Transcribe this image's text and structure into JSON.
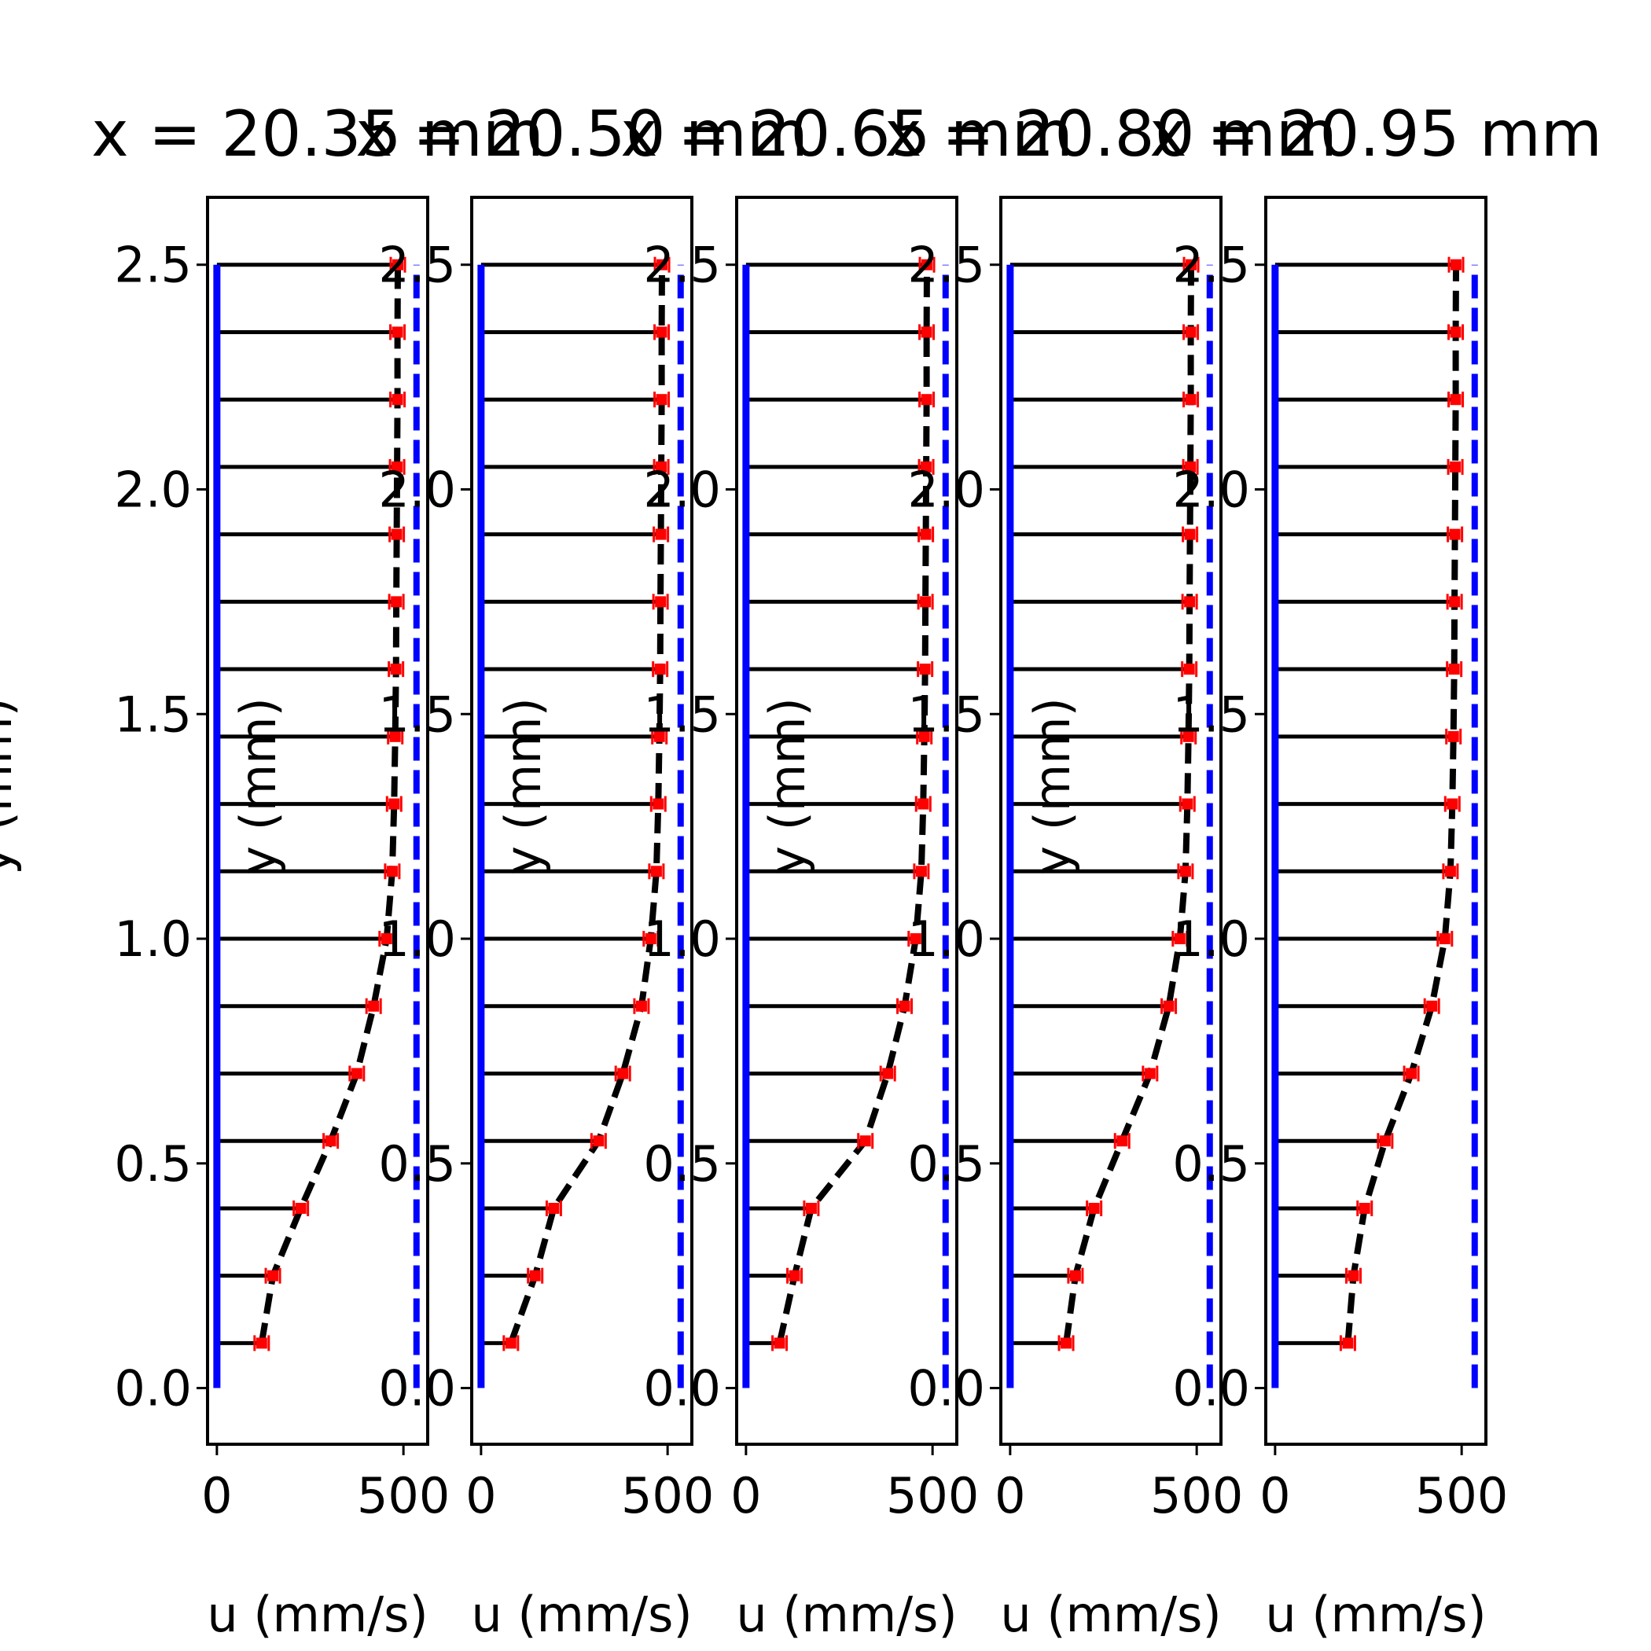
{
  "chart_data": [
    {
      "type": "line",
      "title": "x = 20.35 mm",
      "xlabel": "u (mm/s)",
      "ylabel": "y (mm)",
      "xticks": [
        "0",
        "500"
      ],
      "yticks": [
        "0.0",
        "0.5",
        "1.0",
        "1.5",
        "2.0",
        "2.5"
      ],
      "xlim": [
        -25,
        565
      ],
      "ylim": [
        -0.125,
        2.65
      ],
      "wall_u": 0,
      "freestream_u": 535,
      "y": [
        0.1,
        0.25,
        0.4,
        0.55,
        0.7,
        0.85,
        1.0,
        1.15,
        1.3,
        1.45,
        1.6,
        1.75,
        1.9,
        2.05,
        2.2,
        2.35,
        2.5
      ],
      "u": [
        120,
        150,
        225,
        305,
        375,
        420,
        455,
        470,
        475,
        478,
        480,
        481,
        482,
        483,
        484,
        484,
        485
      ]
    },
    {
      "type": "line",
      "title": "x = 20.50 mm",
      "xlabel": "u (mm/s)",
      "ylabel": "y (mm)",
      "xticks": [
        "0",
        "500"
      ],
      "yticks": [
        "0.0",
        "0.5",
        "1.0",
        "1.5",
        "2.0",
        "2.5"
      ],
      "xlim": [
        -25,
        565
      ],
      "ylim": [
        -0.125,
        2.65
      ],
      "wall_u": 0,
      "freestream_u": 535,
      "y": [
        0.1,
        0.25,
        0.4,
        0.55,
        0.7,
        0.85,
        1.0,
        1.15,
        1.3,
        1.45,
        1.6,
        1.75,
        1.9,
        2.05,
        2.2,
        2.35,
        2.5
      ],
      "u": [
        80,
        145,
        195,
        315,
        380,
        430,
        455,
        470,
        475,
        478,
        480,
        481,
        482,
        483,
        484,
        484,
        485
      ]
    },
    {
      "type": "line",
      "title": "x = 20.65 mm",
      "xlabel": "u (mm/s)",
      "ylabel": "y (mm)",
      "xticks": [
        "0",
        "500"
      ],
      "yticks": [
        "0.0",
        "0.5",
        "1.0",
        "1.5",
        "2.0",
        "2.5"
      ],
      "xlim": [
        -25,
        565
      ],
      "ylim": [
        -0.125,
        2.65
      ],
      "wall_u": 0,
      "freestream_u": 535,
      "y": [
        0.1,
        0.25,
        0.4,
        0.55,
        0.7,
        0.85,
        1.0,
        1.15,
        1.3,
        1.45,
        1.6,
        1.75,
        1.9,
        2.05,
        2.2,
        2.35,
        2.5
      ],
      "u": [
        90,
        130,
        175,
        320,
        380,
        425,
        455,
        470,
        475,
        478,
        480,
        481,
        482,
        483,
        484,
        484,
        485
      ]
    },
    {
      "type": "line",
      "title": "x = 20.80 mm",
      "xlabel": "u (mm/s)",
      "ylabel": "y (mm)",
      "xticks": [
        "0",
        "500"
      ],
      "yticks": [
        "0.0",
        "0.5",
        "1.0",
        "1.5",
        "2.0",
        "2.5"
      ],
      "xlim": [
        -25,
        565
      ],
      "ylim": [
        -0.125,
        2.65
      ],
      "wall_u": 0,
      "freestream_u": 535,
      "y": [
        0.1,
        0.25,
        0.4,
        0.55,
        0.7,
        0.85,
        1.0,
        1.15,
        1.3,
        1.45,
        1.6,
        1.75,
        1.9,
        2.05,
        2.2,
        2.35,
        2.5
      ],
      "u": [
        150,
        175,
        225,
        300,
        375,
        425,
        455,
        470,
        475,
        478,
        480,
        481,
        482,
        483,
        484,
        484,
        485
      ]
    },
    {
      "type": "line",
      "title": "x = 20.95 mm",
      "xlabel": "u (mm/s)",
      "ylabel": "y (mm)",
      "xticks": [
        "0",
        "500"
      ],
      "yticks": [
        "0.0",
        "0.5",
        "1.0",
        "1.5",
        "2.0",
        "2.5"
      ],
      "xlim": [
        -25,
        565
      ],
      "ylim": [
        -0.125,
        2.65
      ],
      "wall_u": 0,
      "freestream_u": 535,
      "y": [
        0.1,
        0.25,
        0.4,
        0.55,
        0.7,
        0.85,
        1.0,
        1.15,
        1.3,
        1.45,
        1.6,
        1.75,
        1.9,
        2.05,
        2.2,
        2.35,
        2.5
      ],
      "u": [
        195,
        210,
        240,
        295,
        365,
        420,
        455,
        470,
        475,
        478,
        480,
        481,
        482,
        483,
        484,
        484,
        485
      ]
    }
  ],
  "colors": {
    "wall": "#0000ff",
    "freestream": "#0000ff",
    "profile": "#000000",
    "markers": "#ff0000",
    "axes": "#000000"
  }
}
